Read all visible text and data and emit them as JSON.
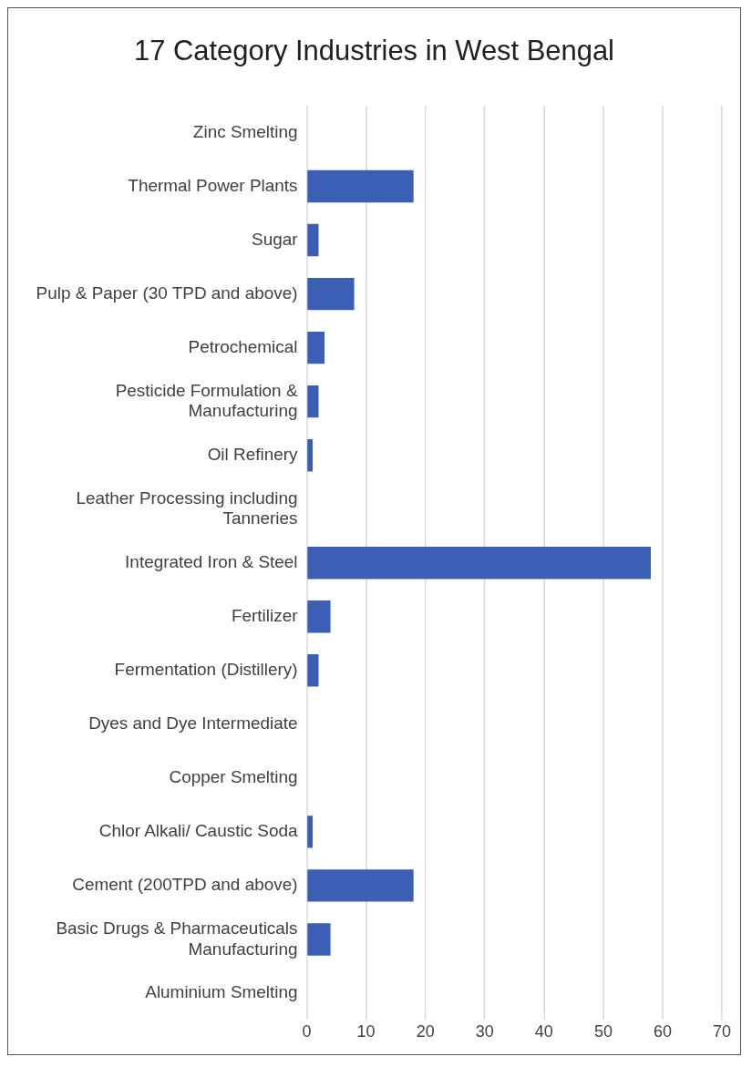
{
  "chart_data": {
    "type": "bar",
    "orientation": "horizontal",
    "title": "17 Category Industries in West Bengal",
    "categories": [
      "Zinc Smelting",
      "Thermal Power Plants",
      "Sugar",
      "Pulp & Paper (30 TPD and above)",
      "Petrochemical",
      "Pesticide Formulation & Manufacturing",
      "Oil Refinery",
      "Leather Processing including Tanneries",
      "Integrated Iron & Steel",
      "Fertilizer",
      "Fermentation (Distillery)",
      "Dyes and Dye Intermediate",
      "Copper Smelting",
      "Chlor Alkali/ Caustic Soda",
      "Cement (200TPD and above)",
      "Basic Drugs & Pharmaceuticals Manufacturing",
      "Aluminium Smelting"
    ],
    "values": [
      0,
      18,
      2,
      8,
      3,
      2,
      1,
      0,
      58,
      4,
      2,
      0,
      0,
      1,
      18,
      4,
      0
    ],
    "color": "#3a5fb5",
    "xlim": [
      0,
      70
    ],
    "xticks": [
      0,
      10,
      20,
      30,
      40,
      50,
      60,
      70
    ],
    "grid": "x",
    "legend": false
  }
}
